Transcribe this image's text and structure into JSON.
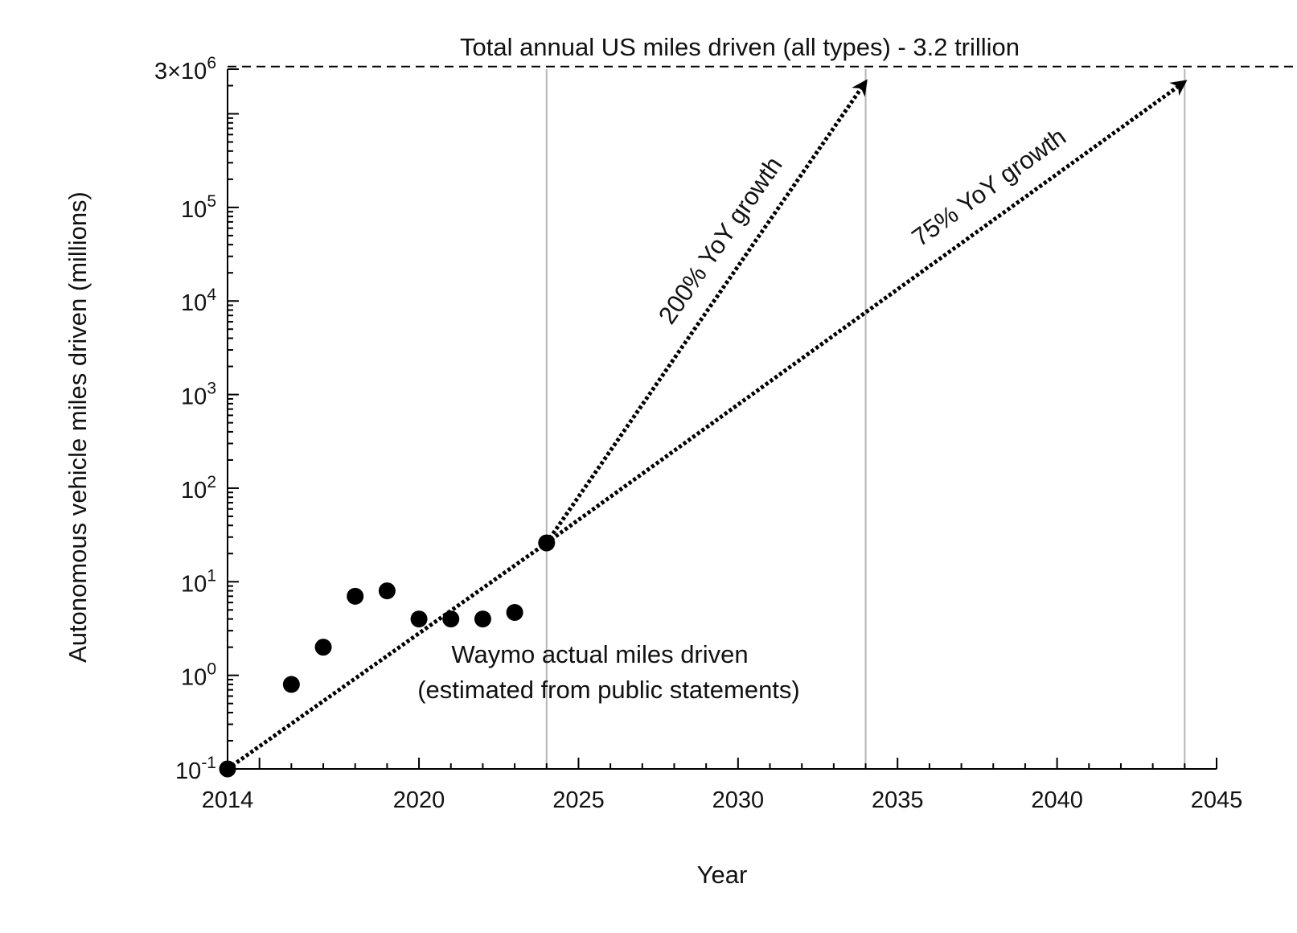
{
  "chart_data": {
    "type": "scatter",
    "title": "",
    "xlabel": "Year",
    "ylabel": "Autonomous vehicle miles driven (millions)",
    "x_scale": "linear",
    "y_scale": "log",
    "xlim": [
      2014,
      2045
    ],
    "ylim": [
      0.1,
      3000000
    ],
    "x_ticks": [
      2014,
      2020,
      2025,
      2030,
      2035,
      2040,
      2045
    ],
    "x_tick_labels": [
      "2014",
      "2020",
      "2025",
      "2030",
      "2035",
      "2040",
      "2045"
    ],
    "y_ticks": [
      {
        "value": 0.1,
        "base": "10",
        "exp": "-1"
      },
      {
        "value": 1,
        "base": "10",
        "exp": "0"
      },
      {
        "value": 10,
        "base": "10",
        "exp": "1"
      },
      {
        "value": 100,
        "base": "10",
        "exp": "2"
      },
      {
        "value": 1000,
        "base": "10",
        "exp": "3"
      },
      {
        "value": 10000,
        "base": "10",
        "exp": "4"
      },
      {
        "value": 100000,
        "base": "10",
        "exp": "5"
      },
      {
        "value": 3000000,
        "base": "3×10",
        "exp": "6"
      }
    ],
    "grid": false,
    "vertical_reference_lines_x": [
      2024,
      2034,
      2044
    ],
    "reference_line": {
      "y": 3200000,
      "style": "dashed",
      "label": "Total annual US miles driven (all types) - 3.2 trillion"
    },
    "series": [
      {
        "name": "",
        "type": "scatter",
        "points": [
          {
            "x": 2014,
            "y": 0.1
          },
          {
            "x": 2016,
            "y": 0.8
          },
          {
            "x": 2017,
            "y": 2.0
          },
          {
            "x": 2018,
            "y": 7.0
          },
          {
            "x": 2019,
            "y": 8.0
          },
          {
            "x": 2020,
            "y": 4.0
          },
          {
            "x": 2021,
            "y": 4.0
          },
          {
            "x": 2022,
            "y": 4.0
          },
          {
            "x": 2023,
            "y": 4.7
          },
          {
            "x": 2024,
            "y": 26.0
          }
        ]
      }
    ],
    "projections": [
      {
        "label": "200% YoY growth",
        "style": "dotted-arrow",
        "from": {
          "x": 2024,
          "y": 26.0
        },
        "to": {
          "x": 2034,
          "y": 2200000
        }
      },
      {
        "label": "75% YoY growth",
        "style": "dotted-arrow",
        "from": {
          "x": 2024,
          "y": 26.0
        },
        "to": {
          "x": 2044,
          "y": 2200000
        }
      }
    ],
    "trend_line": {
      "style": "dotted",
      "from": {
        "x": 2014,
        "y": 0.1
      },
      "to": {
        "x": 2024,
        "y": 26.0
      }
    },
    "annotations": [
      {
        "line1": "Waymo actual miles driven",
        "line2": "(estimated from public statements)",
        "x": 2020.5,
        "y": 1.8
      }
    ]
  }
}
